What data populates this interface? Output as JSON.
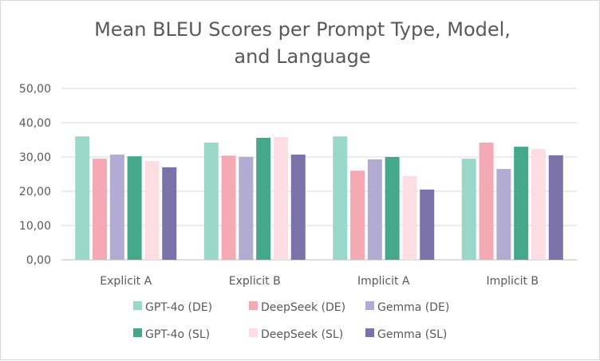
{
  "chart_data": {
    "type": "bar",
    "title_lines": [
      "Mean BLEU Scores per Prompt Type, Model,",
      "and Language"
    ],
    "categories": [
      "Explicit A",
      "Explicit B",
      "Implicit A",
      "Implicit B"
    ],
    "yticks": [
      "0,00",
      "10,00",
      "20,00",
      "30,00",
      "40,00",
      "50,00"
    ],
    "ylim": [
      0,
      50
    ],
    "grid": true,
    "legend_position": "bottom",
    "series": [
      {
        "name": "GPT-4o (DE)",
        "color": "#99d8c9",
        "values": [
          36.0,
          34.2,
          36.0,
          29.5
        ]
      },
      {
        "name": "DeepSeek (DE)",
        "color": "#f4a9b4",
        "values": [
          29.5,
          30.4,
          26.0,
          34.2
        ]
      },
      {
        "name": "Gemma (DE)",
        "color": "#b3acd2",
        "values": [
          30.7,
          30.0,
          29.3,
          26.5
        ]
      },
      {
        "name": "GPT-4o (SL)",
        "color": "#46a88a",
        "values": [
          30.2,
          35.6,
          30.0,
          33.0
        ]
      },
      {
        "name": "DeepSeek (SL)",
        "color": "#fcdde2",
        "values": [
          28.8,
          35.8,
          24.4,
          32.3
        ]
      },
      {
        "name": "Gemma (SL)",
        "color": "#7a72a8",
        "values": [
          27.0,
          30.7,
          20.5,
          30.5
        ]
      }
    ],
    "gridline_color": "#d9d9d9"
  }
}
